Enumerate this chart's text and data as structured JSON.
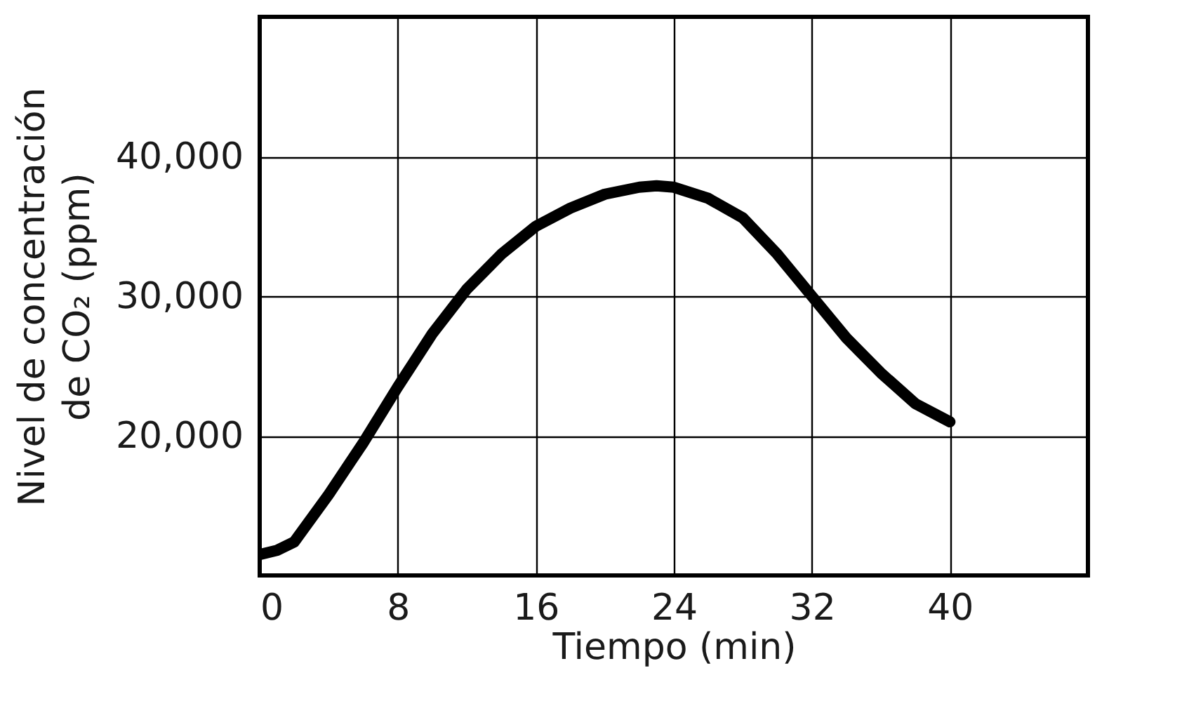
{
  "chart_data": {
    "type": "line",
    "xlabel": "Tiempo (min)",
    "ylabel": "Nivel de concentración de CO₂ (ppm)",
    "x": [
      0,
      1,
      2,
      4,
      6,
      8,
      10,
      12,
      14,
      16,
      18,
      20,
      22,
      23,
      24,
      26,
      28,
      30,
      32,
      34,
      36,
      38,
      40
    ],
    "series": [
      {
        "color": "#000000",
        "values": [
          11500,
          11800,
          12400,
          15800,
          19500,
          23500,
          27300,
          30500,
          33000,
          35000,
          36300,
          37300,
          37800,
          37900,
          37800,
          37000,
          35600,
          33000,
          30000,
          27000,
          24500,
          22300,
          21000
        ]
      }
    ],
    "xlim": [
      0,
      48
    ],
    "xticks": [
      0,
      8,
      16,
      24,
      32,
      40
    ],
    "ylim": [
      10000,
      50000
    ],
    "yticks": [
      {
        "value": 20000,
        "label": "20,000"
      },
      {
        "value": 30000,
        "label": "30,000"
      },
      {
        "value": 40000,
        "label": "40,000"
      }
    ],
    "grid": true,
    "marker": "none",
    "line_style": "solid"
  }
}
